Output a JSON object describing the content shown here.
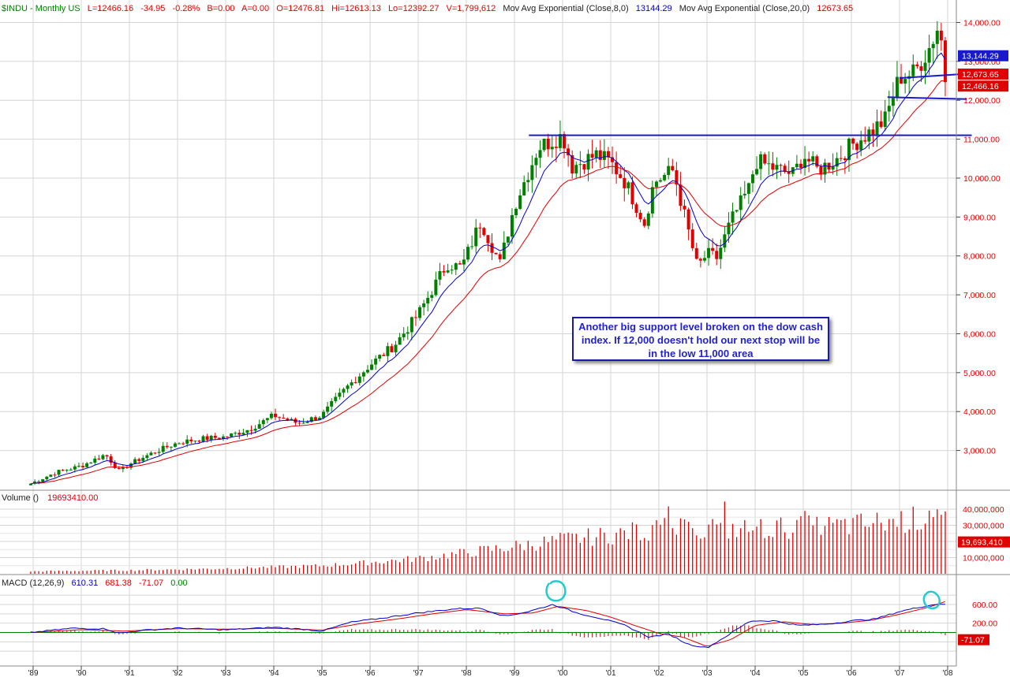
{
  "header": {
    "symbol": "$INDU - Monthly  US",
    "last": "L=12466.16",
    "change": "-34.95",
    "pct": "-0.28%",
    "b": "B=0.00",
    "a": "A=0.00",
    "open": "O=12476.81",
    "hi": "Hi=12613.13",
    "lo": "Lo=12392.27",
    "vol": "V=1,799,612",
    "ma1_label": "Mov Avg Exponential (Close,8,0)",
    "ma1_value": "13144.29",
    "ma2_label": "Mov Avg Exponential (Close,20,0)",
    "ma2_value": "12673.65"
  },
  "volume_header": {
    "label": "Volume ()",
    "value": "19693410.00"
  },
  "macd_header": {
    "label": "MACD (12,26,9)",
    "macd": "610.31",
    "signal": "681.38",
    "hist": "-71.07",
    "zero": "0.00"
  },
  "annotation": {
    "text": "Another big support level broken on the dow cash index. If 12,000 doesn't hold our next stop will be in the low 11,000 area"
  },
  "colors": {
    "up": "#008000",
    "down": "#e00000",
    "ma8": "#0000cc",
    "ma20": "#e00000",
    "trendline": "#1a1acc",
    "grid": "#d4d4d4",
    "axis_text": "#e00000",
    "highlight": "#22cccc"
  },
  "chart_data": [
    {
      "type": "candlestick",
      "panel": "price",
      "title": "$INDU - Monthly",
      "x_tick_labels": [
        "'89",
        "'90",
        "'91",
        "'92",
        "'93",
        "'94",
        "'95",
        "'96",
        "'97",
        "'98",
        "'99",
        "'00",
        "'01",
        "'02",
        "'03",
        "'04",
        "'05",
        "'06",
        "'07",
        "'08"
      ],
      "x_range": [
        1989.0,
        2008.25
      ],
      "y_range": [
        2000,
        14300
      ],
      "y_tick_labels": [
        "3,000.00",
        "4,000.00",
        "5,000.00",
        "6,000.00",
        "7,000.00",
        "8,000.00",
        "9,000.00",
        "10,000.00",
        "11,000.00",
        "12,000.00",
        "13,000.00",
        "14,000.00"
      ],
      "y_ticks": [
        3000,
        4000,
        5000,
        6000,
        7000,
        8000,
        9000,
        10000,
        11000,
        12000,
        13000,
        14000
      ],
      "close_anchors": [
        [
          1988.95,
          2150
        ],
        [
          1989.5,
          2450
        ],
        [
          1990.0,
          2600
        ],
        [
          1990.5,
          2900
        ],
        [
          1990.8,
          2450
        ],
        [
          1991.0,
          2650
        ],
        [
          1991.5,
          2950
        ],
        [
          1992.0,
          3200
        ],
        [
          1992.5,
          3300
        ],
        [
          1993.0,
          3350
        ],
        [
          1993.5,
          3550
        ],
        [
          1994.0,
          3900
        ],
        [
          1994.5,
          3700
        ],
        [
          1995.0,
          3900
        ],
        [
          1995.5,
          4600
        ],
        [
          1996.0,
          5200
        ],
        [
          1996.5,
          5700
        ],
        [
          1997.0,
          6500
        ],
        [
          1997.6,
          7800
        ],
        [
          1997.9,
          7700
        ],
        [
          1998.3,
          8900
        ],
        [
          1998.7,
          7800
        ],
        [
          1999.0,
          9300
        ],
        [
          1999.5,
          10800
        ],
        [
          2000.0,
          11100
        ],
        [
          2000.2,
          10300
        ],
        [
          2000.7,
          10600
        ],
        [
          2001.0,
          10400
        ],
        [
          2001.3,
          9900
        ],
        [
          2001.7,
          8850
        ],
        [
          2001.9,
          9900
        ],
        [
          2002.3,
          10200
        ],
        [
          2002.6,
          8700
        ],
        [
          2002.8,
          7700
        ],
        [
          2003.0,
          8050
        ],
        [
          2003.2,
          7950
        ],
        [
          2003.5,
          8900
        ],
        [
          2003.9,
          9800
        ],
        [
          2004.0,
          10450
        ],
        [
          2004.5,
          10200
        ],
        [
          2004.8,
          10100
        ],
        [
          2005.0,
          10600
        ],
        [
          2005.3,
          10200
        ],
        [
          2005.7,
          10500
        ],
        [
          2006.0,
          10850
        ],
        [
          2006.4,
          11200
        ],
        [
          2006.7,
          11500
        ],
        [
          2007.0,
          12600
        ],
        [
          2007.3,
          12700
        ],
        [
          2007.6,
          13300
        ],
        [
          2007.8,
          13900
        ],
        [
          2007.9,
          13350
        ],
        [
          2008.0,
          12466
        ]
      ],
      "last_close": 12466.16,
      "ema8_last": 13144.29,
      "ema20_last": 12673.65,
      "price_labels": [
        "13,144.29",
        "12,673.65",
        "12,466.16"
      ],
      "trendlines": [
        {
          "from": [
            1999.3,
            11100
          ],
          "to": [
            2008.5,
            11100
          ]
        },
        {
          "from": [
            2007.0,
            12570
          ],
          "to": [
            2008.4,
            12680
          ]
        },
        {
          "from": [
            2006.75,
            12080
          ],
          "to": [
            2008.4,
            12030
          ]
        }
      ]
    },
    {
      "type": "bar",
      "panel": "volume",
      "series_name": "Volume",
      "y_range": [
        0,
        46000000
      ],
      "y_tick_labels": [
        "10,000,000",
        "20,000,000",
        "30,000,000",
        "40,000,000"
      ],
      "y_ticks": [
        10000000,
        20000000,
        30000000,
        40000000
      ],
      "last_value": 19693410,
      "last_label": "19,693,410",
      "volume_anchors": [
        [
          1988.95,
          1500000
        ],
        [
          1991.0,
          2200000
        ],
        [
          1993.0,
          3300000
        ],
        [
          1995.0,
          5000000
        ],
        [
          1996.0,
          7000000
        ],
        [
          1997.0,
          9500000
        ],
        [
          1998.0,
          13000000
        ],
        [
          1999.0,
          17000000
        ],
        [
          2000.0,
          21000000
        ],
        [
          2001.0,
          24000000
        ],
        [
          2002.0,
          28000000
        ],
        [
          2003.0,
          27000000
        ],
        [
          2004.0,
          28000000
        ],
        [
          2005.0,
          29000000
        ],
        [
          2006.0,
          30000000
        ],
        [
          2007.0,
          33000000
        ],
        [
          2007.9,
          35000000
        ]
      ]
    },
    {
      "type": "line",
      "panel": "macd",
      "title": "MACD (12,26,9)",
      "y_range": [
        -450,
        900
      ],
      "y_tick_labels": [
        "600.00",
        "200.00",
        "-71.07"
      ],
      "y_ticks": [
        600,
        200
      ],
      "macd_anchors": [
        [
          1988.95,
          0
        ],
        [
          1989.8,
          90
        ],
        [
          1990.5,
          80
        ],
        [
          1990.8,
          -20
        ],
        [
          1991.2,
          40
        ],
        [
          1992.0,
          95
        ],
        [
          1993.0,
          55
        ],
        [
          1994.0,
          110
        ],
        [
          1994.6,
          70
        ],
        [
          1995.0,
          30
        ],
        [
          1995.6,
          220
        ],
        [
          1996.2,
          300
        ],
        [
          1997.0,
          420
        ],
        [
          1997.8,
          510
        ],
        [
          1998.3,
          520
        ],
        [
          1998.8,
          350
        ],
        [
          1999.3,
          450
        ],
        [
          1999.8,
          600
        ],
        [
          2000.3,
          420
        ],
        [
          2000.8,
          300
        ],
        [
          2001.3,
          150
        ],
        [
          2001.8,
          -100
        ],
        [
          2002.2,
          -30
        ],
        [
          2002.6,
          -250
        ],
        [
          2003.0,
          -330
        ],
        [
          2003.4,
          -80
        ],
        [
          2003.9,
          250
        ],
        [
          2004.4,
          250
        ],
        [
          2004.9,
          150
        ],
        [
          2005.5,
          180
        ],
        [
          2006.0,
          250
        ],
        [
          2006.5,
          290
        ],
        [
          2007.0,
          450
        ],
        [
          2007.5,
          560
        ],
        [
          2007.8,
          610
        ],
        [
          2008.0,
          610
        ]
      ],
      "signal_anchors": [
        [
          1988.95,
          0
        ],
        [
          1990.0,
          60
        ],
        [
          1990.9,
          30
        ],
        [
          1992.0,
          80
        ],
        [
          1993.0,
          70
        ],
        [
          1994.0,
          90
        ],
        [
          1995.0,
          50
        ],
        [
          1995.8,
          190
        ],
        [
          1996.5,
          280
        ],
        [
          1997.3,
          400
        ],
        [
          1998.0,
          490
        ],
        [
          1998.8,
          400
        ],
        [
          1999.4,
          420
        ],
        [
          1999.9,
          560
        ],
        [
          2000.5,
          470
        ],
        [
          2001.0,
          330
        ],
        [
          2001.5,
          150
        ],
        [
          2002.0,
          -20
        ],
        [
          2002.5,
          -100
        ],
        [
          2003.0,
          -300
        ],
        [
          2003.5,
          -150
        ],
        [
          2004.0,
          150
        ],
        [
          2004.6,
          230
        ],
        [
          2005.2,
          170
        ],
        [
          2005.8,
          200
        ],
        [
          2006.4,
          260
        ],
        [
          2007.0,
          390
        ],
        [
          2007.6,
          540
        ],
        [
          2008.0,
          681
        ]
      ],
      "macd_last": 610.31,
      "signal_last": 681.38,
      "hist_last": -71.07
    }
  ]
}
